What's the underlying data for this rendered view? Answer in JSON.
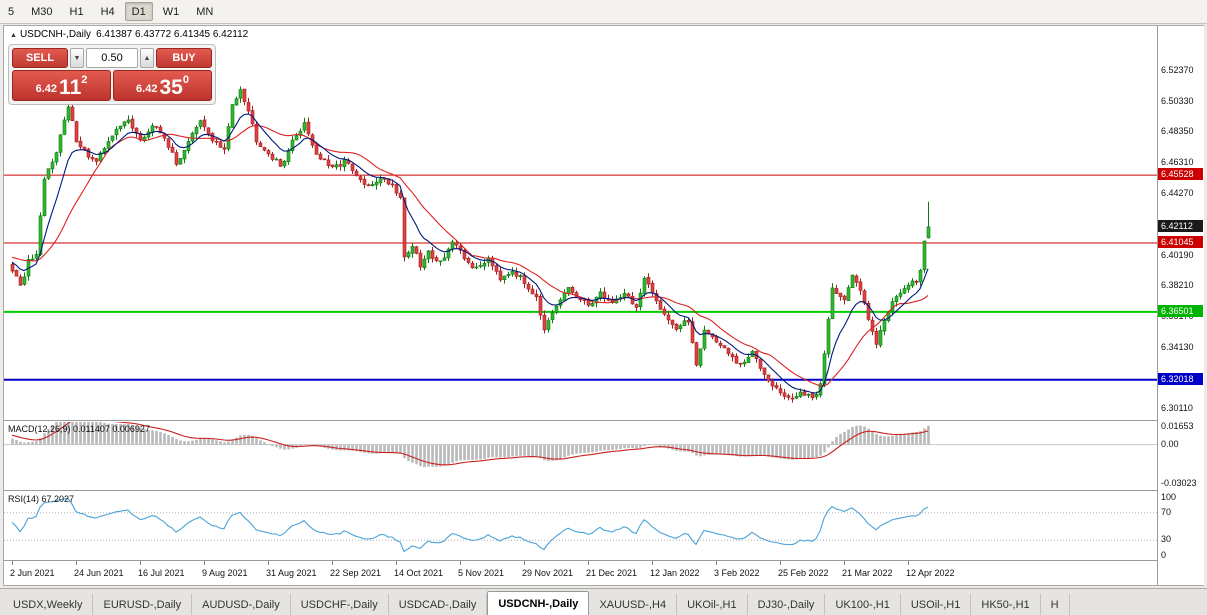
{
  "toolbar": {
    "timeframes": [
      "5",
      "M30",
      "H1",
      "H4",
      "D1",
      "W1",
      "MN"
    ],
    "active": "D1"
  },
  "header": {
    "icon": "▲",
    "title": "USDCNH-,Daily",
    "ohlc": "6.41387 6.43772 6.41345 6.42112"
  },
  "trade_panel": {
    "sell_label": "SELL",
    "buy_label": "BUY",
    "volume": "0.50",
    "down_icon": "▼",
    "up_icon": "▲",
    "sell_price_main": "6.42",
    "sell_price_big": "11",
    "sell_price_sup": "2",
    "buy_price_main": "6.42",
    "buy_price_big": "35",
    "buy_price_sup": "0"
  },
  "price_axis": {
    "labels": [
      "6.52370",
      "6.50330",
      "6.48350",
      "6.46310",
      "6.44270",
      "6.40190",
      "6.38210",
      "6.36170",
      "6.34130",
      "6.30110"
    ],
    "tags": [
      {
        "value": 6.45528,
        "label": "6.45528",
        "color": "#cc0000"
      },
      {
        "value": 6.42112,
        "label": "6.42112",
        "color": "#1a1a1a"
      },
      {
        "value": 6.41045,
        "label": "6.41045",
        "color": "#cc0000"
      },
      {
        "value": 6.36501,
        "label": "6.36501",
        "color": "#00b400"
      },
      {
        "value": 6.32018,
        "label": "6.32018",
        "color": "#0000c8"
      }
    ]
  },
  "macd_panel": {
    "label": "MACD(12,26,9) 0.011407 0.006927",
    "value_main": 0.011407,
    "value_signal": 0.006927,
    "axis_labels": [
      {
        "value": 0.01653,
        "text": "0.01653"
      },
      {
        "value": 0,
        "text": "0.00"
      },
      {
        "value": -0.03023,
        "text": "-0.03023"
      }
    ],
    "range": {
      "min": -0.036,
      "max": 0.0175
    }
  },
  "rsi_panel": {
    "label": "RSI(14) 67.2027",
    "value": 67.2027,
    "axis_labels": [
      {
        "value": 100,
        "text": "100"
      },
      {
        "value": 70,
        "text": "70"
      },
      {
        "value": 30,
        "text": "30"
      },
      {
        "value": 0,
        "text": "0"
      }
    ],
    "levels": [
      70,
      30
    ],
    "range": {
      "min": 0,
      "max": 100
    }
  },
  "date_axis": [
    "2 Jun 2021",
    "24 Jun 2021",
    "16 Jul 2021",
    "9 Aug 2021",
    "31 Aug 2021",
    "22 Sep 2021",
    "14 Oct 2021",
    "5 Nov 2021",
    "29 Nov 2021",
    "21 Dec 2021",
    "12 Jan 2022",
    "3 Feb 2022",
    "25 Feb 2022",
    "21 Mar 2022",
    "12 Apr 2022"
  ],
  "tabs": [
    "USDX,Weekly",
    "EURUSD-,Daily",
    "AUDUSD-,Daily",
    "USDCHF-,Daily",
    "USDCAD-,Daily",
    "USDCNH-,Daily",
    "XAUUSD-,H4",
    "UKOil-,H1",
    "DJ30-,Daily",
    "UK100-,H1",
    "USOil-,H1",
    "HK50-,H1",
    "H"
  ],
  "active_tab": "USDCNH-,Daily",
  "chart_data": {
    "type": "candlestick",
    "symbol": "USDCNH",
    "timeframe": "Daily",
    "last_ohlc": {
      "open": 6.41387,
      "high": 6.43772,
      "low": 6.41345,
      "close": 6.42112
    },
    "price_range": {
      "min": 6.293,
      "max": 6.553
    },
    "candle_count": 230,
    "candles_per_label": 16,
    "noise": 0.004,
    "levels": [
      {
        "value": 6.45528,
        "color": "#cc0000",
        "width": 1
      },
      {
        "value": 6.41045,
        "color": "#cc0000",
        "width": 1
      },
      {
        "value": 6.36501,
        "color": "#00cc00",
        "width": 2
      },
      {
        "value": 6.32018,
        "color": "#0000cc",
        "width": 2
      }
    ],
    "close_anchors": [
      [
        -30,
        6.358
      ],
      [
        -20,
        6.392
      ],
      [
        -10,
        6.408
      ],
      [
        -3,
        6.398
      ],
      [
        0,
        6.393
      ],
      [
        2,
        6.381
      ],
      [
        4,
        6.398
      ],
      [
        6,
        6.401
      ],
      [
        8,
        6.452
      ],
      [
        11,
        6.472
      ],
      [
        14,
        6.5
      ],
      [
        16,
        6.479
      ],
      [
        19,
        6.468
      ],
      [
        21,
        6.463
      ],
      [
        24,
        6.479
      ],
      [
        27,
        6.487
      ],
      [
        29,
        6.493
      ],
      [
        32,
        6.477
      ],
      [
        35,
        6.488
      ],
      [
        38,
        6.481
      ],
      [
        41,
        6.462
      ],
      [
        44,
        6.478
      ],
      [
        47,
        6.49
      ],
      [
        50,
        6.479
      ],
      [
        53,
        6.471
      ],
      [
        55,
        6.502
      ],
      [
        57,
        6.513
      ],
      [
        59,
        6.498
      ],
      [
        61,
        6.479
      ],
      [
        64,
        6.47
      ],
      [
        67,
        6.461
      ],
      [
        70,
        6.477
      ],
      [
        73,
        6.49
      ],
      [
        76,
        6.469
      ],
      [
        80,
        6.459
      ],
      [
        83,
        6.465
      ],
      [
        86,
        6.454
      ],
      [
        89,
        6.447
      ],
      [
        92,
        6.454
      ],
      [
        95,
        6.449
      ],
      [
        97,
        6.441
      ],
      [
        98,
        6.401
      ],
      [
        100,
        6.409
      ],
      [
        102,
        6.395
      ],
      [
        104,
        6.404
      ],
      [
        107,
        6.398
      ],
      [
        110,
        6.411
      ],
      [
        113,
        6.4
      ],
      [
        116,
        6.393
      ],
      [
        119,
        6.401
      ],
      [
        122,
        6.388
      ],
      [
        125,
        6.393
      ],
      [
        128,
        6.384
      ],
      [
        131,
        6.376
      ],
      [
        133,
        6.352
      ],
      [
        136,
        6.368
      ],
      [
        139,
        6.381
      ],
      [
        142,
        6.372
      ],
      [
        144,
        6.37
      ],
      [
        147,
        6.377
      ],
      [
        150,
        6.371
      ],
      [
        153,
        6.378
      ],
      [
        156,
        6.368
      ],
      [
        158,
        6.386
      ],
      [
        160,
        6.377
      ],
      [
        163,
        6.364
      ],
      [
        166,
        6.354
      ],
      [
        169,
        6.359
      ],
      [
        171,
        6.331
      ],
      [
        173,
        6.353
      ],
      [
        176,
        6.346
      ],
      [
        179,
        6.337
      ],
      [
        182,
        6.329
      ],
      [
        185,
        6.338
      ],
      [
        188,
        6.325
      ],
      [
        191,
        6.314
      ],
      [
        194,
        6.307
      ],
      [
        197,
        6.312
      ],
      [
        200,
        6.307
      ],
      [
        202,
        6.317
      ],
      [
        205,
        6.381
      ],
      [
        208,
        6.374
      ],
      [
        210,
        6.388
      ],
      [
        212,
        6.379
      ],
      [
        214,
        6.362
      ],
      [
        216,
        6.345
      ],
      [
        218,
        6.359
      ],
      [
        220,
        6.373
      ],
      [
        222,
        6.379
      ],
      [
        224,
        6.381
      ],
      [
        226,
        6.386
      ],
      [
        227,
        6.392
      ],
      [
        228,
        6.413
      ],
      [
        229,
        6.42112
      ]
    ],
    "indicators": [
      {
        "name": "MA fast",
        "style": "line",
        "color": "#001a80"
      },
      {
        "name": "MA slow",
        "style": "line",
        "color": "#dd2222"
      },
      {
        "name": "MACD(12,26,9)",
        "hist_color": "#b9b9b9",
        "signal_color": "#cc2222"
      },
      {
        "name": "RSI(14)",
        "color": "#4aa3d8"
      }
    ]
  }
}
